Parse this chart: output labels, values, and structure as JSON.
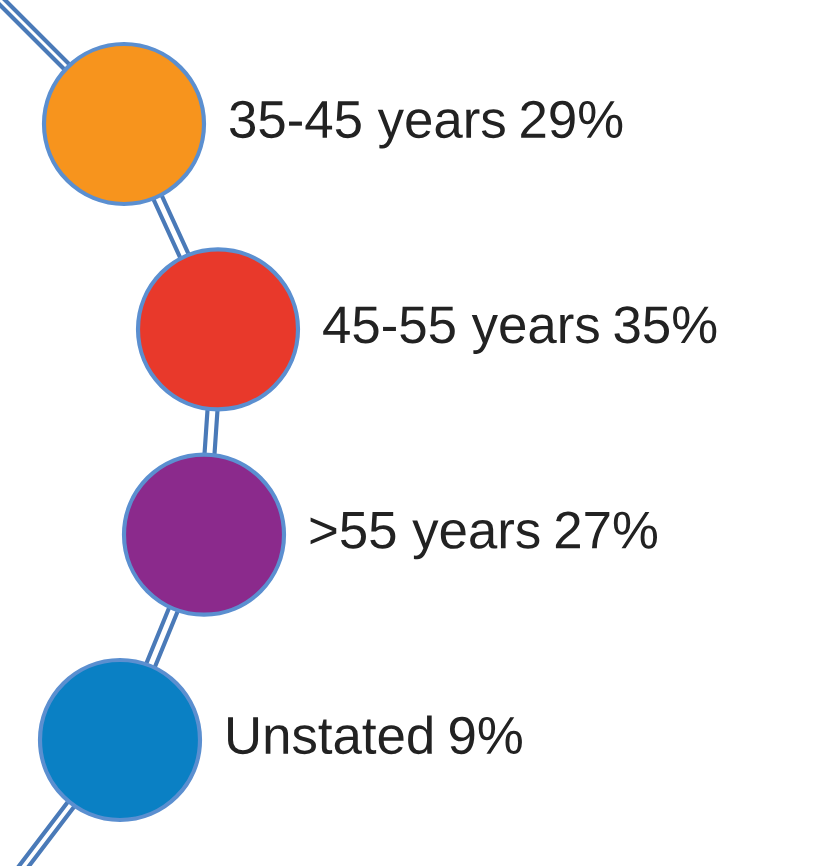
{
  "chart_data": {
    "type": "other",
    "categories": [
      "35-45 years",
      "45-55 years",
      ">55 years",
      "Unstated"
    ],
    "values": [
      29,
      35,
      27,
      9
    ],
    "value_labels": [
      "29%",
      "35%",
      "27%",
      "9%"
    ],
    "colors": [
      "#f7941d",
      "#e8392b",
      "#8b2a8c",
      "#0a80c4"
    ]
  }
}
